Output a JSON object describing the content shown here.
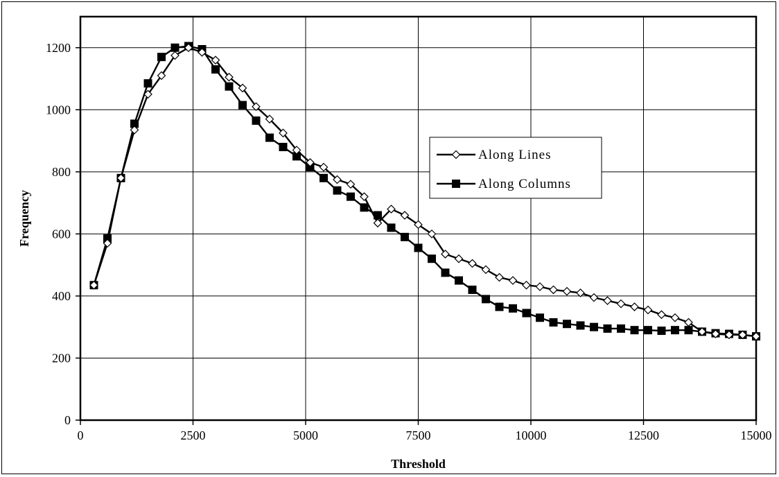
{
  "chart_data": {
    "type": "line",
    "title": "",
    "xlabel": "Threshold",
    "ylabel": "Frequency",
    "xlim": [
      0,
      15000
    ],
    "ylim": [
      0,
      1300
    ],
    "x_ticks": [
      0,
      2500,
      5000,
      7500,
      10000,
      12500,
      15000
    ],
    "y_ticks": [
      0,
      200,
      400,
      600,
      800,
      1000,
      1200
    ],
    "x_tick_labels": [
      "0",
      "2500",
      "5000",
      "7500",
      "10000",
      "12500",
      "15000"
    ],
    "y_tick_labels": [
      "0",
      "200",
      "400",
      "600",
      "800",
      "1000",
      "1200"
    ],
    "grid": true,
    "legend_position": "right-middle",
    "series": [
      {
        "name": "Along Lines",
        "marker": "diamond-open",
        "color": "#000000",
        "x": [
          300,
          600,
          900,
          1200,
          1500,
          1800,
          2100,
          2400,
          2700,
          3000,
          3300,
          3600,
          3900,
          4200,
          4500,
          4800,
          5100,
          5400,
          5700,
          6000,
          6300,
          6600,
          6900,
          7200,
          7500,
          7800,
          8100,
          8400,
          8700,
          9000,
          9300,
          9600,
          9900,
          10200,
          10500,
          10800,
          11100,
          11400,
          11700,
          12000,
          12300,
          12600,
          12900,
          13200,
          13500,
          13800,
          14100,
          14400,
          14700,
          15000
        ],
        "y": [
          435,
          570,
          780,
          935,
          1050,
          1110,
          1175,
          1200,
          1185,
          1160,
          1105,
          1070,
          1010,
          970,
          925,
          870,
          830,
          815,
          775,
          760,
          720,
          635,
          680,
          660,
          630,
          600,
          535,
          520,
          505,
          485,
          460,
          450,
          435,
          430,
          420,
          415,
          410,
          395,
          385,
          375,
          365,
          355,
          340,
          330,
          315,
          285,
          278,
          275,
          275,
          270
        ]
      },
      {
        "name": "Along Columns",
        "marker": "square-filled",
        "color": "#000000",
        "x": [
          300,
          600,
          900,
          1200,
          1500,
          1800,
          2100,
          2400,
          2700,
          3000,
          3300,
          3600,
          3900,
          4200,
          4500,
          4800,
          5100,
          5400,
          5700,
          6000,
          6300,
          6600,
          6900,
          7200,
          7500,
          7800,
          8100,
          8400,
          8700,
          9000,
          9300,
          9600,
          9900,
          10200,
          10500,
          10800,
          11100,
          11400,
          11700,
          12000,
          12300,
          12600,
          12900,
          13200,
          13500,
          13800,
          14100,
          14400,
          14700,
          15000
        ],
        "y": [
          435,
          585,
          780,
          955,
          1085,
          1170,
          1200,
          1205,
          1195,
          1130,
          1075,
          1015,
          965,
          910,
          880,
          850,
          815,
          780,
          740,
          720,
          685,
          660,
          620,
          590,
          555,
          520,
          475,
          450,
          420,
          390,
          365,
          360,
          345,
          330,
          315,
          310,
          305,
          300,
          295,
          295,
          290,
          290,
          288,
          290,
          290,
          285,
          280,
          278,
          275,
          270
        ]
      }
    ]
  }
}
